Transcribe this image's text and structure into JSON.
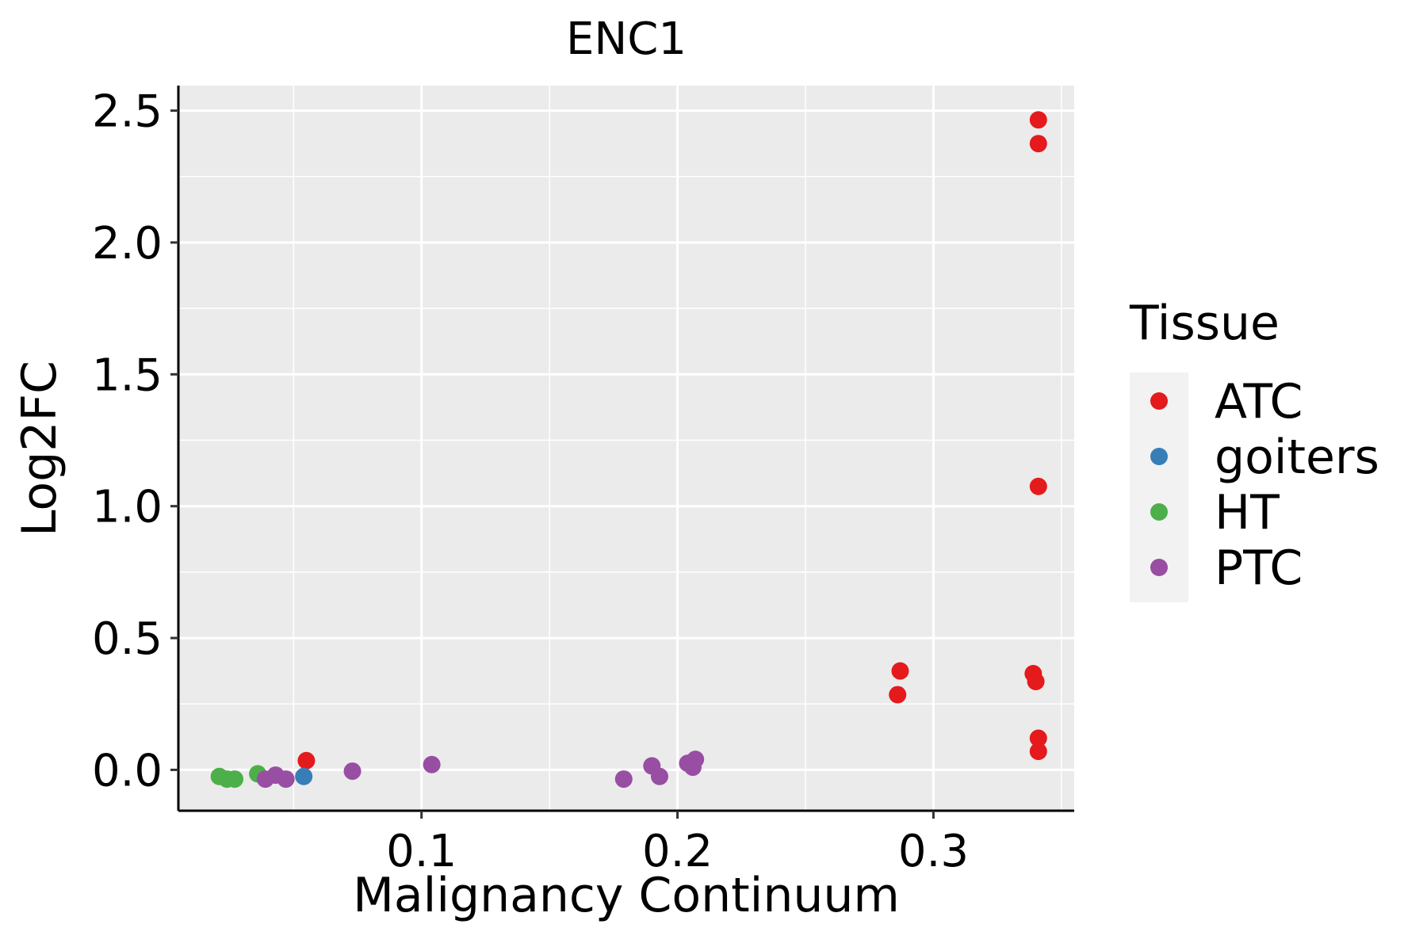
{
  "chart_data": {
    "type": "scatter",
    "title": "ENC1",
    "xlabel": "Malignancy Continuum",
    "ylabel": "Log2FC",
    "xlim": [
      0.005,
      0.355
    ],
    "ylim": [
      -0.155,
      2.595
    ],
    "xticks": [
      0.1,
      0.2,
      0.3
    ],
    "xtick_labels": [
      "0.1",
      "0.2",
      "0.3"
    ],
    "yticks": [
      0.0,
      0.5,
      1.0,
      1.5,
      2.0,
      2.5
    ],
    "ytick_labels": [
      "0.0",
      "0.5",
      "1.0",
      "1.5",
      "2.0",
      "2.5"
    ],
    "grid": true,
    "legend_position": "right",
    "legend_title": "Tissue",
    "series": [
      {
        "name": "ATC",
        "color": "#E41A1C",
        "points": [
          {
            "x": 0.055,
            "y": 0.035
          },
          {
            "x": 0.287,
            "y": 0.375
          },
          {
            "x": 0.286,
            "y": 0.285
          },
          {
            "x": 0.339,
            "y": 0.365
          },
          {
            "x": 0.34,
            "y": 0.335
          },
          {
            "x": 0.341,
            "y": 2.465
          },
          {
            "x": 0.341,
            "y": 2.375
          },
          {
            "x": 0.341,
            "y": 1.075
          },
          {
            "x": 0.341,
            "y": 0.12
          },
          {
            "x": 0.341,
            "y": 0.07
          }
        ]
      },
      {
        "name": "goiters",
        "color": "#377EB8",
        "points": [
          {
            "x": 0.054,
            "y": -0.025
          }
        ]
      },
      {
        "name": "HT",
        "color": "#4DAF4A",
        "points": [
          {
            "x": 0.021,
            "y": -0.025
          },
          {
            "x": 0.024,
            "y": -0.035
          },
          {
            "x": 0.027,
            "y": -0.035
          },
          {
            "x": 0.036,
            "y": -0.015
          }
        ]
      },
      {
        "name": "PTC",
        "color": "#984EA3",
        "points": [
          {
            "x": 0.039,
            "y": -0.035
          },
          {
            "x": 0.043,
            "y": -0.02
          },
          {
            "x": 0.047,
            "y": -0.035
          },
          {
            "x": 0.073,
            "y": -0.005
          },
          {
            "x": 0.104,
            "y": 0.02
          },
          {
            "x": 0.179,
            "y": -0.035
          },
          {
            "x": 0.19,
            "y": 0.015
          },
          {
            "x": 0.193,
            "y": -0.025
          },
          {
            "x": 0.204,
            "y": 0.025
          },
          {
            "x": 0.206,
            "y": 0.01
          },
          {
            "x": 0.207,
            "y": 0.04
          }
        ]
      }
    ]
  }
}
